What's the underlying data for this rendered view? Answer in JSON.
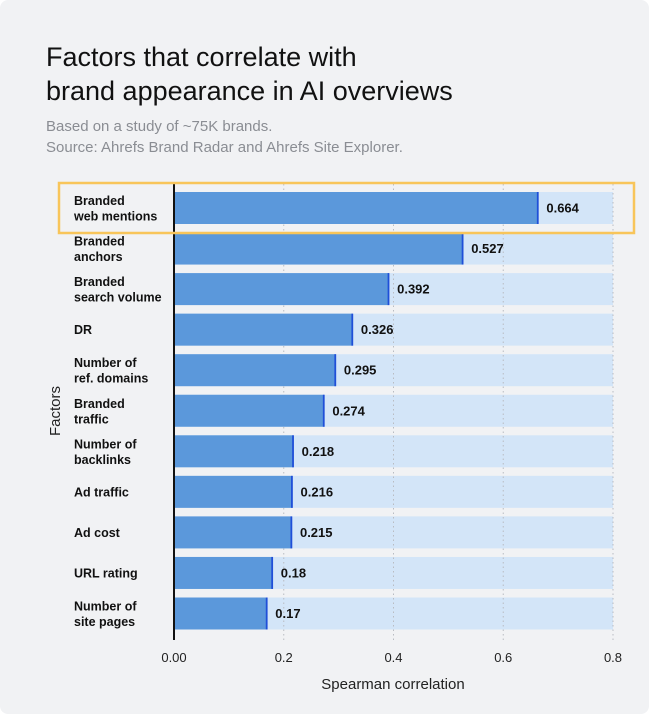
{
  "title_lines": [
    "Factors that correlate with",
    "brand appearance in AI overviews"
  ],
  "subtitle_lines": [
    "Based on a study of ~75K brands.",
    "Source: Ahrefs Brand Radar and Ahrefs Site Explorer."
  ],
  "chart_data": {
    "type": "bar",
    "orientation": "horizontal",
    "categories": [
      [
        "Branded",
        "web mentions"
      ],
      [
        "Branded",
        "anchors"
      ],
      [
        "Branded",
        "search volume"
      ],
      [
        "DR"
      ],
      [
        "Number of",
        "ref. domains"
      ],
      [
        "Branded",
        "traffic"
      ],
      [
        "Number of",
        "backlinks"
      ],
      [
        "Ad traffic"
      ],
      [
        "Ad cost"
      ],
      [
        "URL rating"
      ],
      [
        "Number of",
        "site pages"
      ]
    ],
    "values": [
      0.664,
      0.527,
      0.392,
      0.326,
      0.295,
      0.274,
      0.218,
      0.216,
      0.215,
      0.18,
      0.17
    ],
    "value_labels": [
      "0.664",
      "0.527",
      "0.392",
      "0.326",
      "0.295",
      "0.274",
      "0.218",
      "0.216",
      "0.215",
      "0.18",
      "0.17"
    ],
    "xlabel": "Spearman correlation",
    "ylabel": "Factors",
    "xlim": [
      0,
      0.8
    ],
    "xticks": [
      0,
      0.2,
      0.4,
      0.6,
      0.8
    ],
    "xtick_labels": [
      "0.00",
      "0.2",
      "0.4",
      "0.6",
      "0.8"
    ],
    "grid": "vertical dotted",
    "highlighted_category_index": 0,
    "colors": {
      "bar": "#5b98db",
      "bar_end": "#1f4fd8",
      "track": "#d3e5f8",
      "highlight": "#f8c55a",
      "background": "#f1f2f4"
    }
  }
}
